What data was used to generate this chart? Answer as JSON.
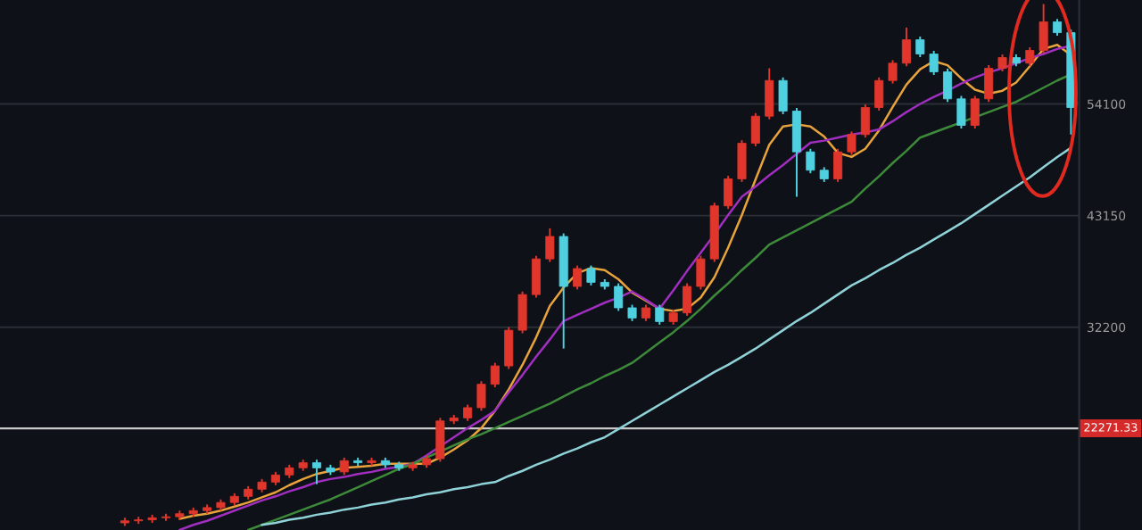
{
  "chart_data": {
    "type": "candlestick",
    "categories": [
      null,
      null,
      null,
      null,
      null,
      null,
      null,
      null,
      null,
      null,
      null,
      null,
      null,
      null,
      null,
      null,
      null,
      null,
      null,
      null,
      null,
      null,
      null,
      null,
      null,
      null,
      null,
      null,
      null,
      null,
      null,
      null,
      null,
      null,
      null,
      null,
      null,
      null,
      null,
      null,
      null,
      null,
      null,
      null,
      null,
      null,
      null,
      null,
      null,
      null,
      null,
      null,
      null,
      null,
      null,
      null,
      null,
      null,
      null,
      null,
      null,
      null,
      null,
      null,
      null,
      null,
      null,
      null,
      null,
      null
    ],
    "ohlc": [
      [
        13000,
        13500,
        12700,
        13200
      ],
      [
        13200,
        13600,
        12900,
        13300
      ],
      [
        13300,
        13800,
        13000,
        13500
      ],
      [
        13500,
        13900,
        13200,
        13600
      ],
      [
        13600,
        14200,
        13300,
        13900
      ],
      [
        13900,
        14500,
        13600,
        14200
      ],
      [
        14200,
        14800,
        13900,
        14500
      ],
      [
        14500,
        15300,
        14200,
        15000
      ],
      [
        15000,
        15900,
        14700,
        15600
      ],
      [
        15600,
        16600,
        15300,
        16300
      ],
      [
        16300,
        17300,
        16000,
        17000
      ],
      [
        17000,
        18000,
        16700,
        17700
      ],
      [
        17700,
        18700,
        17400,
        18400
      ],
      [
        18400,
        19200,
        18100,
        18900
      ],
      [
        18900,
        19200,
        16800,
        18400
      ],
      [
        18400,
        18700,
        17700,
        18000
      ],
      [
        18000,
        19400,
        17700,
        19100
      ],
      [
        19100,
        19400,
        18600,
        18900
      ],
      [
        18900,
        19400,
        18600,
        19100
      ],
      [
        19100,
        19400,
        18400,
        18700
      ],
      [
        18700,
        19000,
        18100,
        18400
      ],
      [
        18400,
        19000,
        18100,
        18700
      ],
      [
        18700,
        19600,
        18400,
        19300
      ],
      [
        19300,
        23300,
        19000,
        23000
      ],
      [
        23000,
        23600,
        22700,
        23300
      ],
      [
        23300,
        24600,
        23000,
        24300
      ],
      [
        24300,
        26900,
        24000,
        26600
      ],
      [
        26600,
        28700,
        26300,
        28400
      ],
      [
        28400,
        32200,
        28100,
        31900
      ],
      [
        31900,
        35700,
        31600,
        35400
      ],
      [
        35400,
        39200,
        35100,
        38900
      ],
      [
        38900,
        41900,
        38600,
        41100
      ],
      [
        41100,
        41400,
        30100,
        36200
      ],
      [
        36200,
        38250,
        35900,
        37950
      ],
      [
        37950,
        38250,
        36300,
        36600
      ],
      [
        36600,
        36900,
        35900,
        36200
      ],
      [
        36200,
        36500,
        33800,
        34100
      ],
      [
        34100,
        34400,
        32800,
        33100
      ],
      [
        33100,
        34400,
        32800,
        34100
      ],
      [
        34100,
        34400,
        32450,
        32750
      ],
      [
        32750,
        33900,
        32450,
        33600
      ],
      [
        33600,
        36500,
        33300,
        36200
      ],
      [
        36200,
        39200,
        35900,
        38900
      ],
      [
        38900,
        44400,
        38600,
        44100
      ],
      [
        44100,
        47050,
        43800,
        46750
      ],
      [
        46750,
        50550,
        46450,
        50250
      ],
      [
        50250,
        53200,
        49950,
        52900
      ],
      [
        52900,
        57600,
        52600,
        56400
      ],
      [
        56400,
        56700,
        53100,
        53400
      ],
      [
        53400,
        53700,
        45000,
        49400
      ],
      [
        49400,
        49700,
        47300,
        47600
      ],
      [
        47600,
        47900,
        46450,
        46750
      ],
      [
        46750,
        49700,
        46450,
        49400
      ],
      [
        49400,
        51400,
        49100,
        51100
      ],
      [
        51100,
        54050,
        50800,
        53750
      ],
      [
        53750,
        56700,
        53450,
        56400
      ],
      [
        56400,
        58400,
        56100,
        58100
      ],
      [
        58100,
        61600,
        57800,
        60400
      ],
      [
        60400,
        60700,
        58700,
        59000
      ],
      [
        59000,
        59300,
        56950,
        57250
      ],
      [
        57250,
        57550,
        54300,
        54600
      ],
      [
        54600,
        54900,
        51700,
        52000
      ],
      [
        52000,
        54900,
        51700,
        54600
      ],
      [
        54600,
        57900,
        54300,
        57600
      ],
      [
        57600,
        58950,
        57300,
        58650
      ],
      [
        58650,
        58950,
        57800,
        58100
      ],
      [
        58100,
        59650,
        57800,
        59350
      ],
      [
        59350,
        63900,
        59050,
        62150
      ],
      [
        62150,
        62450,
        60800,
        61100
      ],
      [
        61100,
        61400,
        51100,
        53750
      ]
    ],
    "colors": [
      "#e0362c",
      "#e0362c",
      "#e0362c",
      "#e0362c",
      "#e0362c",
      "#e0362c",
      "#e0362c",
      "#e0362c",
      "#e0362c",
      "#e0362c",
      "#e0362c",
      "#e0362c",
      "#e0362c",
      "#e0362c",
      "#4fd0e0",
      "#4fd0e0",
      "#e0362c",
      "#4fd0e0",
      "#e0362c",
      "#4fd0e0",
      "#4fd0e0",
      "#e0362c",
      "#e0362c",
      "#e0362c",
      "#e0362c",
      "#e0362c",
      "#e0362c",
      "#e0362c",
      "#e0362c",
      "#e0362c",
      "#e0362c",
      "#e0362c",
      "#4fd0e0",
      "#e0362c",
      "#4fd0e0",
      "#4fd0e0",
      "#4fd0e0",
      "#4fd0e0",
      "#e0362c",
      "#4fd0e0",
      "#e0362c",
      "#e0362c",
      "#e0362c",
      "#e0362c",
      "#e0362c",
      "#e0362c",
      "#e0362c",
      "#e0362c",
      "#4fd0e0",
      "#4fd0e0",
      "#4fd0e0",
      "#4fd0e0",
      "#e0362c",
      "#e0362c",
      "#e0362c",
      "#e0362c",
      "#e0362c",
      "#e0362c",
      "#4fd0e0",
      "#4fd0e0",
      "#4fd0e0",
      "#4fd0e0",
      "#e0362c",
      "#e0362c",
      "#e0362c",
      "#4fd0e0",
      "#e0362c",
      "#e0362c",
      "#4fd0e0",
      "#4fd0e0"
    ],
    "series": [
      {
        "type": "line",
        "color": "#e8a33c",
        "values": [
          null,
          null,
          null,
          null,
          13400,
          13700,
          13900,
          14200,
          14600,
          15000,
          15500,
          16000,
          16700,
          17300,
          17800,
          18100,
          18400,
          18500,
          18600,
          18800,
          18800,
          18800,
          18800,
          19400,
          20200,
          21100,
          22300,
          24000,
          26100,
          28500,
          31200,
          34300,
          36100,
          37500,
          38000,
          37800,
          36900,
          35600,
          34800,
          34000,
          33800,
          34000,
          35100,
          37100,
          40000,
          43200,
          46700,
          50100,
          51900,
          52100,
          51900,
          50900,
          49300,
          48900,
          49700,
          51500,
          53800,
          56000,
          57500,
          58300,
          57900,
          56600,
          55500,
          55100,
          55400,
          56200,
          57800,
          59500,
          59900,
          58900
        ]
      },
      {
        "type": "line",
        "color": "#a02fc0",
        "values": [
          null,
          null,
          null,
          null,
          12300,
          12800,
          13200,
          13700,
          14200,
          14700,
          15200,
          15600,
          16100,
          16500,
          17000,
          17300,
          17500,
          17800,
          18000,
          18300,
          18500,
          18800,
          19600,
          20500,
          21400,
          22300,
          23100,
          24000,
          25800,
          27500,
          29300,
          31000,
          32800,
          33400,
          34000,
          34600,
          35100,
          35700,
          34900,
          34000,
          35800,
          37700,
          39500,
          41300,
          43200,
          45000,
          46000,
          47100,
          48100,
          49200,
          50300,
          50500,
          50800,
          51100,
          51300,
          51600,
          52400,
          53300,
          54100,
          54800,
          55400,
          56100,
          56700,
          57200,
          57600,
          58100,
          58600,
          59000,
          59500,
          59800
        ]
      },
      {
        "type": "line",
        "color": "#3d8a3a",
        "values": [
          null,
          null,
          null,
          null,
          null,
          null,
          null,
          null,
          null,
          12300,
          12800,
          13300,
          13800,
          14300,
          14800,
          15300,
          15900,
          16500,
          17100,
          17700,
          18300,
          18800,
          19400,
          20000,
          20600,
          21200,
          21700,
          22300,
          22900,
          23500,
          24100,
          24700,
          25400,
          26100,
          26700,
          27400,
          28000,
          28700,
          29700,
          30700,
          31700,
          32800,
          34000,
          35300,
          36500,
          37800,
          39000,
          40300,
          41000,
          41700,
          42400,
          43100,
          43800,
          44500,
          45800,
          47000,
          48300,
          49500,
          50800,
          51300,
          51800,
          52300,
          52800,
          53300,
          53800,
          54300,
          55000,
          55700,
          56400,
          57000
        ]
      },
      {
        "type": "line",
        "color": "#8fd3d8",
        "values": [
          null,
          null,
          null,
          null,
          null,
          null,
          null,
          null,
          null,
          null,
          12800,
          13000,
          13300,
          13500,
          13800,
          14000,
          14300,
          14500,
          14800,
          15000,
          15300,
          15500,
          15800,
          16000,
          16300,
          16500,
          16800,
          17000,
          17600,
          18100,
          18700,
          19200,
          19800,
          20300,
          20900,
          21400,
          22200,
          23000,
          23800,
          24600,
          25400,
          26200,
          27000,
          27800,
          28500,
          29300,
          30100,
          31000,
          31900,
          32800,
          33600,
          34500,
          35400,
          36300,
          37000,
          37800,
          38500,
          39300,
          40000,
          40800,
          41600,
          42400,
          43300,
          44200,
          45100,
          46000,
          46900,
          47900,
          48900,
          49800
        ]
      }
    ],
    "ylim": [
      12300,
      64300
    ],
    "yticks": [
      32200,
      43150,
      54100
    ],
    "grid": "y",
    "tick_labels": "y",
    "ref_lines": [
      {
        "axis": "y",
        "value": 22271.33,
        "label": "22271.33",
        "color": "#c8c8c8"
      }
    ]
  }
}
